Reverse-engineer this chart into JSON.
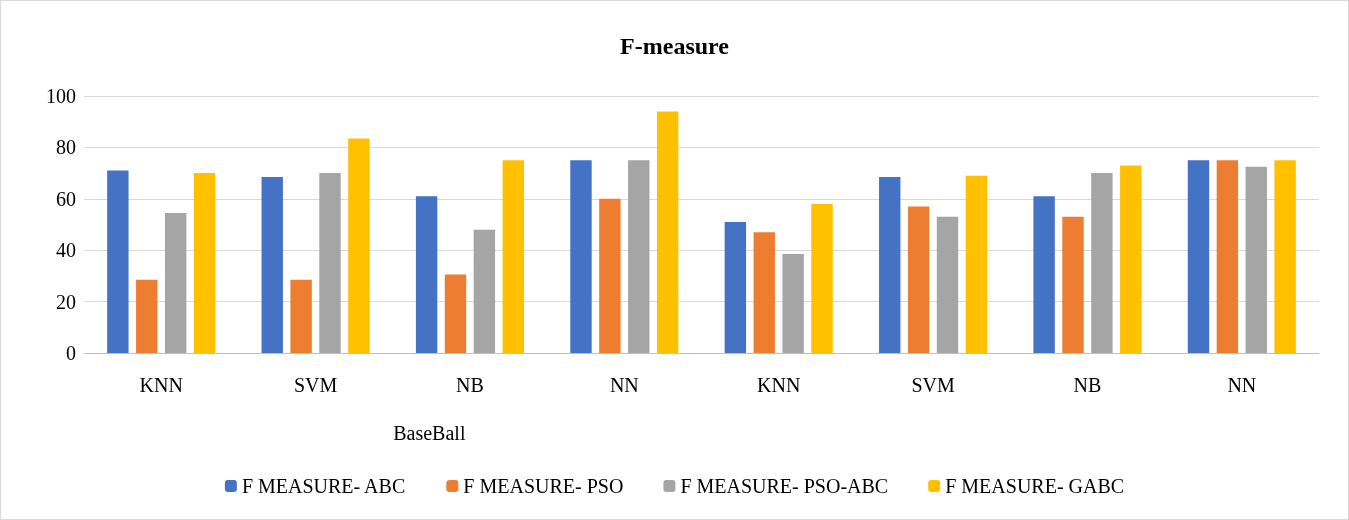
{
  "chart_data": {
    "type": "bar",
    "title": "F-measure",
    "categories": [
      "KNN",
      "SVM",
      "NB",
      "NN",
      "KNN",
      "SVM",
      "NB",
      "NN"
    ],
    "series": [
      {
        "name": "F MEASURE- ABC",
        "color": "#4472c4",
        "values": [
          71,
          68.5,
          61,
          75,
          51,
          68.5,
          61,
          75
        ]
      },
      {
        "name": "F MEASURE- PSO",
        "color": "#ed7d31",
        "values": [
          28.5,
          28.5,
          30.5,
          60,
          47,
          57,
          53,
          75
        ]
      },
      {
        "name": "F MEASURE- PSO-ABC",
        "color": "#a5a5a5",
        "values": [
          54.5,
          70,
          48,
          75,
          38.5,
          53,
          70,
          72.5
        ]
      },
      {
        "name": "F MEASURE- GABC",
        "color": "#ffc000",
        "values": [
          70,
          83.5,
          75,
          94,
          58,
          69,
          73,
          75
        ]
      }
    ],
    "ylim": [
      0,
      100
    ],
    "yticks": [
      0,
      20,
      40,
      60,
      80,
      100
    ],
    "grid": "y",
    "legend": "bottom",
    "annotations": [
      "BaseBall"
    ]
  }
}
